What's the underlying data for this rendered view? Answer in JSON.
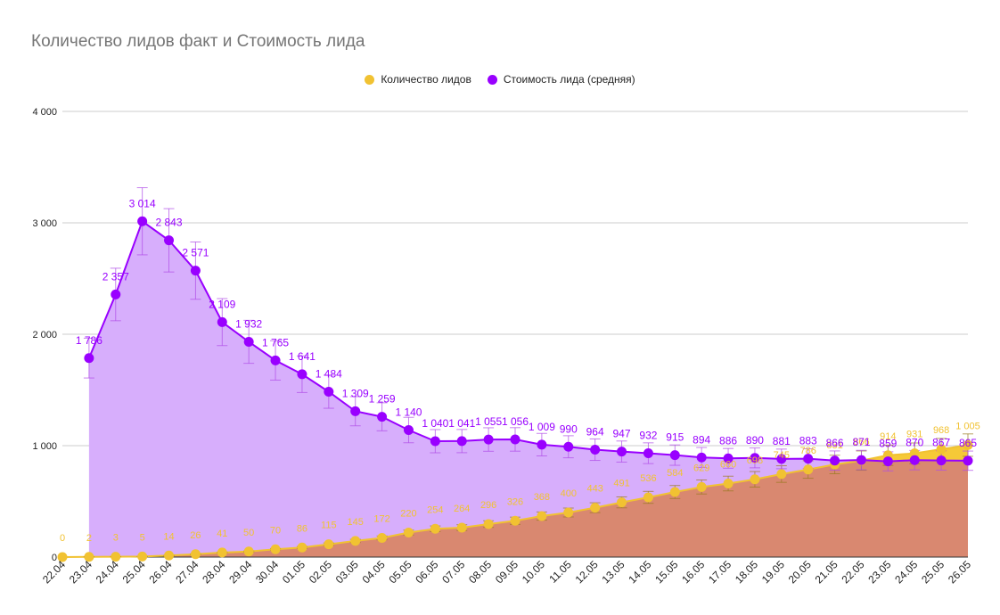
{
  "chart_data": {
    "type": "line",
    "title": "Количество лидов факт и Стоимость лида",
    "legend_position": "top",
    "grid": true,
    "ylim": [
      0,
      4000
    ],
    "y_ticks": [
      "0",
      "1 000",
      "2 000",
      "3 000",
      "4 000"
    ],
    "y_tick_values": [
      0,
      1000,
      2000,
      3000,
      4000
    ],
    "categories": [
      "22.04",
      "23.04",
      "24.04",
      "25.04",
      "26.04",
      "27.04",
      "28.04",
      "29.04",
      "30.04",
      "01.05",
      "02.05",
      "03.05",
      "04.05",
      "05.05",
      "06.05",
      "07.05",
      "08.05",
      "09.05",
      "10.05",
      "11.05",
      "12.05",
      "13.05",
      "14.05",
      "15.05",
      "16.05",
      "17.05",
      "18.05",
      "19.05",
      "20.05",
      "21.05",
      "22.05",
      "23.05",
      "24.05",
      "25.05",
      "26.05"
    ],
    "series": [
      {
        "name": "Количество лидов",
        "color": "#f1c232",
        "area_color": "#d98870",
        "values": [
          0,
          2,
          3,
          5,
          14,
          26,
          41,
          50,
          70,
          86,
          115,
          145,
          172,
          220,
          254,
          264,
          296,
          326,
          368,
          400,
          443,
          491,
          536,
          584,
          629,
          660,
          698,
          745,
          786,
          831,
          866,
          914,
          931,
          968,
          1005
        ],
        "labels": [
          "0",
          "2",
          "3",
          "5",
          "14",
          "26",
          "41",
          "50",
          "70",
          "86",
          "115",
          "145",
          "172",
          "220",
          "254",
          "264",
          "296",
          "326",
          "368",
          "400",
          "443",
          "491",
          "536",
          "584",
          "629",
          "660",
          "698",
          "745",
          "786",
          "831",
          "866",
          "914",
          "931",
          "968",
          "1 005"
        ]
      },
      {
        "name": "Стоимость лида (средняя)",
        "color": "#9900ff",
        "area_color": "#d7aefc",
        "values": [
          null,
          1786,
          2357,
          3014,
          2843,
          2571,
          2109,
          1932,
          1765,
          1641,
          1484,
          1309,
          1259,
          1140,
          1040,
          1041,
          1055,
          1056,
          1009,
          990,
          964,
          947,
          932,
          915,
          894,
          886,
          890,
          881,
          883,
          866,
          871,
          859,
          870,
          867,
          865
        ],
        "labels": [
          "",
          "1 786",
          "2 357",
          "3 014",
          "2 843",
          "2 571",
          "2 109",
          "1 932",
          "1 765",
          "1 641",
          "1 484",
          "1 309",
          "1 259",
          "1 140",
          "1 040",
          "1 041",
          "1 055",
          "1 056",
          "1 009",
          "990",
          "964",
          "947",
          "932",
          "915",
          "894",
          "886",
          "890",
          "881",
          "883",
          "866",
          "871",
          "859",
          "870",
          "867",
          "865"
        ],
        "error_fraction": 0.1
      }
    ]
  }
}
